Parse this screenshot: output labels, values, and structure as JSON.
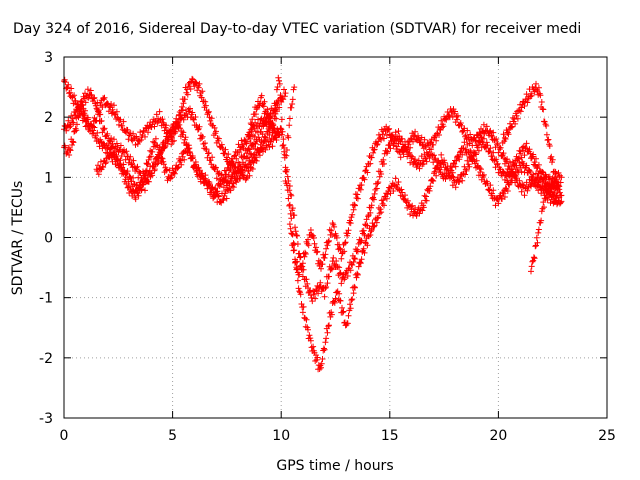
{
  "chart_data": {
    "type": "scatter",
    "title": "Day 324 of 2016, Sidereal Day-to-day VTEC variation (SDTVAR) for receiver medi",
    "xlabel": "GPS time / hours",
    "ylabel": "SDTVAR / TECUs",
    "xlim": [
      0,
      25
    ],
    "ylim": [
      -3,
      3
    ],
    "xticks": [
      0,
      5,
      10,
      15,
      20,
      25
    ],
    "yticks": [
      -3,
      -2,
      -1,
      0,
      1,
      2,
      3
    ],
    "grid": true,
    "marker": "+",
    "series_color": "#ff0000",
    "series": [
      {
        "name": "SDTVAR",
        "tracks": [
          {
            "x": [
              0.0,
              0.3,
              0.6,
              0.9,
              1.2,
              1.5,
              1.8,
              2.0,
              2.3,
              2.6,
              3.0,
              3.4,
              3.8,
              4.1,
              4.4,
              4.7,
              5.0,
              5.3,
              5.6,
              5.9,
              6.2,
              6.5,
              6.8,
              7.1,
              7.4,
              7.7,
              8.0,
              8.4,
              8.8,
              9.2,
              9.6,
              9.8
            ],
            "y": [
              2.6,
              2.4,
              2.2,
              2.0,
              1.8,
              2.0,
              2.3,
              2.2,
              2.1,
              1.9,
              1.7,
              1.6,
              1.8,
              1.9,
              2.0,
              1.8,
              1.6,
              2.0,
              2.4,
              2.6,
              2.5,
              2.2,
              1.9,
              1.6,
              1.4,
              1.2,
              1.1,
              1.0,
              1.3,
              1.6,
              1.9,
              2.1
            ]
          },
          {
            "x": [
              0.0,
              0.3,
              0.6,
              0.9,
              1.2,
              1.5,
              1.8,
              2.1,
              2.4,
              2.8,
              3.2,
              3.6,
              4.0,
              4.4,
              4.8,
              5.2,
              5.6,
              6.0,
              6.4,
              6.8,
              7.2,
              7.6,
              8.0,
              8.4,
              8.8,
              9.2,
              9.6,
              10.0
            ],
            "y": [
              1.8,
              1.9,
              2.1,
              2.3,
              2.4,
              2.2,
              1.8,
              1.6,
              1.5,
              1.4,
              1.2,
              1.0,
              1.1,
              1.4,
              1.7,
              1.9,
              1.6,
              1.2,
              1.0,
              0.8,
              0.6,
              0.8,
              1.0,
              1.2,
              1.4,
              1.5,
              1.6,
              1.8
            ]
          },
          {
            "x": [
              0.0,
              0.2,
              0.4,
              0.6,
              0.8,
              1.0,
              1.3,
              1.6,
              1.9,
              2.2,
              2.6,
              3.0,
              3.4,
              3.8,
              4.2,
              4.6,
              5.0,
              5.4,
              5.8,
              6.2,
              6.6,
              7.0,
              7.4,
              7.8,
              8.2,
              8.6,
              9.0,
              9.4,
              9.8,
              10.2
            ],
            "y": [
              1.5,
              1.4,
              1.6,
              1.9,
              2.2,
              2.0,
              1.8,
              1.6,
              1.5,
              1.4,
              1.2,
              1.0,
              0.8,
              0.9,
              1.2,
              1.5,
              1.8,
              2.0,
              2.1,
              1.8,
              1.4,
              1.1,
              0.9,
              1.0,
              1.3,
              1.5,
              1.7,
              2.0,
              2.2,
              2.4
            ]
          },
          {
            "x": [
              1.5,
              1.8,
              2.1,
              2.4,
              2.7,
              3.0,
              3.3,
              3.6,
              3.9,
              4.2,
              4.5,
              4.8,
              5.1,
              5.4,
              5.7,
              6.0,
              6.3,
              6.6,
              6.9,
              7.2,
              7.5,
              7.8,
              8.1,
              8.4,
              8.7,
              9.0,
              9.3,
              9.6,
              9.9
            ],
            "y": [
              1.1,
              1.2,
              1.4,
              1.3,
              1.1,
              0.8,
              0.7,
              0.9,
              1.3,
              1.6,
              1.3,
              1.0,
              1.1,
              1.3,
              1.5,
              1.2,
              1.0,
              0.9,
              0.7,
              0.9,
              1.1,
              1.3,
              1.5,
              1.6,
              1.8,
              1.9,
              2.0,
              1.8,
              1.7
            ]
          },
          {
            "x": [
              8.5,
              8.8,
              9.1,
              9.4,
              9.6,
              9.8,
              9.9,
              10.0,
              10.1,
              10.2,
              10.4,
              10.6
            ],
            "y": [
              1.7,
              2.1,
              2.3,
              2.0,
              1.8,
              2.4,
              2.7,
              2.2,
              1.6,
              1.2,
              2.0,
              2.5
            ]
          },
          {
            "x": [
              10.0,
              10.2,
              10.4,
              10.6,
              10.8,
              11.0,
              11.2,
              11.4,
              11.6,
              11.8,
              12.0,
              12.2,
              12.4,
              12.6,
              12.8,
              13.0,
              13.3,
              13.6,
              13.9,
              14.2,
              14.5,
              14.8,
              15.1,
              15.4,
              15.7,
              16.0,
              16.3,
              16.6,
              16.9,
              17.2,
              17.5,
              17.8,
              18.1,
              18.4,
              18.7,
              19.0,
              19.3,
              19.6,
              19.9,
              20.2,
              20.5,
              20.8,
              21.1,
              21.4,
              21.7,
              22.0,
              22.3,
              22.6,
              22.9
            ],
            "y": [
              1.8,
              1.2,
              0.8,
              0.3,
              -0.2,
              -0.6,
              -0.8,
              -1.0,
              -0.9,
              -0.8,
              -0.9,
              -0.6,
              -0.4,
              -0.5,
              -0.7,
              -0.6,
              -0.4,
              -0.1,
              0.2,
              0.6,
              1.0,
              1.4,
              1.6,
              1.7,
              1.5,
              1.3,
              1.2,
              1.3,
              1.4,
              1.2,
              1.0,
              1.1,
              1.3,
              1.5,
              1.4,
              1.2,
              1.0,
              0.8,
              0.6,
              0.7,
              0.9,
              1.1,
              1.2,
              1.1,
              0.9,
              0.8,
              0.7,
              0.6,
              0.6
            ]
          },
          {
            "x": [
              10.2,
              10.4,
              10.6,
              10.8,
              11.0,
              11.2,
              11.4,
              11.6,
              11.8,
              12.0,
              12.2,
              12.4,
              12.6,
              12.8,
              13.0,
              13.2,
              13.5,
              13.8,
              14.1,
              14.4,
              14.7,
              15.0,
              15.3,
              15.6,
              15.9,
              16.2,
              16.5,
              16.8,
              17.1,
              17.4,
              17.7,
              18.0,
              18.3,
              18.6,
              18.9,
              19.2,
              19.5,
              19.8,
              20.1,
              20.4,
              20.7,
              21.0,
              21.3,
              21.6,
              21.9,
              22.2,
              22.5,
              22.8
            ],
            "y": [
              1.0,
              0.5,
              -0.2,
              -0.8,
              -1.2,
              -1.5,
              -1.8,
              -2.0,
              -2.2,
              -1.8,
              -1.4,
              -1.1,
              -0.9,
              -1.2,
              -1.5,
              -1.1,
              -0.6,
              -0.2,
              0.1,
              0.3,
              0.6,
              0.8,
              0.9,
              0.7,
              0.5,
              0.4,
              0.5,
              0.8,
              1.1,
              1.3,
              1.1,
              0.9,
              1.0,
              1.2,
              1.4,
              1.6,
              1.5,
              1.3,
              1.1,
              1.0,
              1.2,
              1.4,
              1.5,
              1.3,
              1.1,
              1.0,
              0.9,
              0.8
            ]
          },
          {
            "x": [
              10.4,
              10.6,
              10.8,
              11.0,
              11.2,
              11.4,
              11.6,
              11.8,
              12.0,
              12.2,
              12.4,
              12.6,
              12.8,
              13.0,
              13.2,
              13.4,
              13.7,
              14.0,
              14.3,
              14.6,
              14.9,
              15.2,
              15.5,
              15.8,
              16.1,
              16.4,
              16.7,
              17.0,
              17.3,
              17.6,
              17.9,
              18.2,
              18.5,
              18.8,
              19.1,
              19.4,
              19.7,
              20.0,
              20.3,
              20.6,
              20.9,
              21.2,
              21.5,
              21.8,
              22.1,
              22.4,
              22.7
            ],
            "y": [
              0.2,
              -0.3,
              -0.6,
              -0.4,
              -0.1,
              0.1,
              -0.2,
              -0.5,
              -0.3,
              0.0,
              0.2,
              -0.1,
              -0.3,
              0.0,
              0.3,
              0.6,
              0.9,
              1.2,
              1.5,
              1.7,
              1.8,
              1.6,
              1.4,
              1.5,
              1.7,
              1.6,
              1.5,
              1.6,
              1.8,
              2.0,
              2.1,
              1.9,
              1.7,
              1.6,
              1.7,
              1.8,
              1.7,
              1.5,
              1.3,
              1.1,
              0.9,
              0.8,
              0.9,
              1.0,
              0.9,
              0.8,
              0.7
            ]
          },
          {
            "x": [
              20.2,
              20.5,
              20.8,
              21.1,
              21.3,
              21.5,
              21.7,
              21.9,
              22.1,
              22.3,
              22.5,
              22.7,
              22.9
            ],
            "y": [
              1.6,
              1.8,
              2.0,
              2.2,
              2.3,
              2.4,
              2.5,
              2.4,
              2.0,
              1.6,
              1.2,
              0.9,
              0.7
            ]
          },
          {
            "x": [
              21.5,
              21.6,
              21.7,
              21.8,
              21.9,
              22.0,
              22.1,
              22.3,
              22.5,
              22.7,
              22.9
            ],
            "y": [
              -0.5,
              -0.4,
              -0.2,
              0.0,
              0.2,
              0.4,
              0.6,
              0.8,
              0.9,
              1.0,
              1.0
            ]
          }
        ]
      }
    ]
  }
}
